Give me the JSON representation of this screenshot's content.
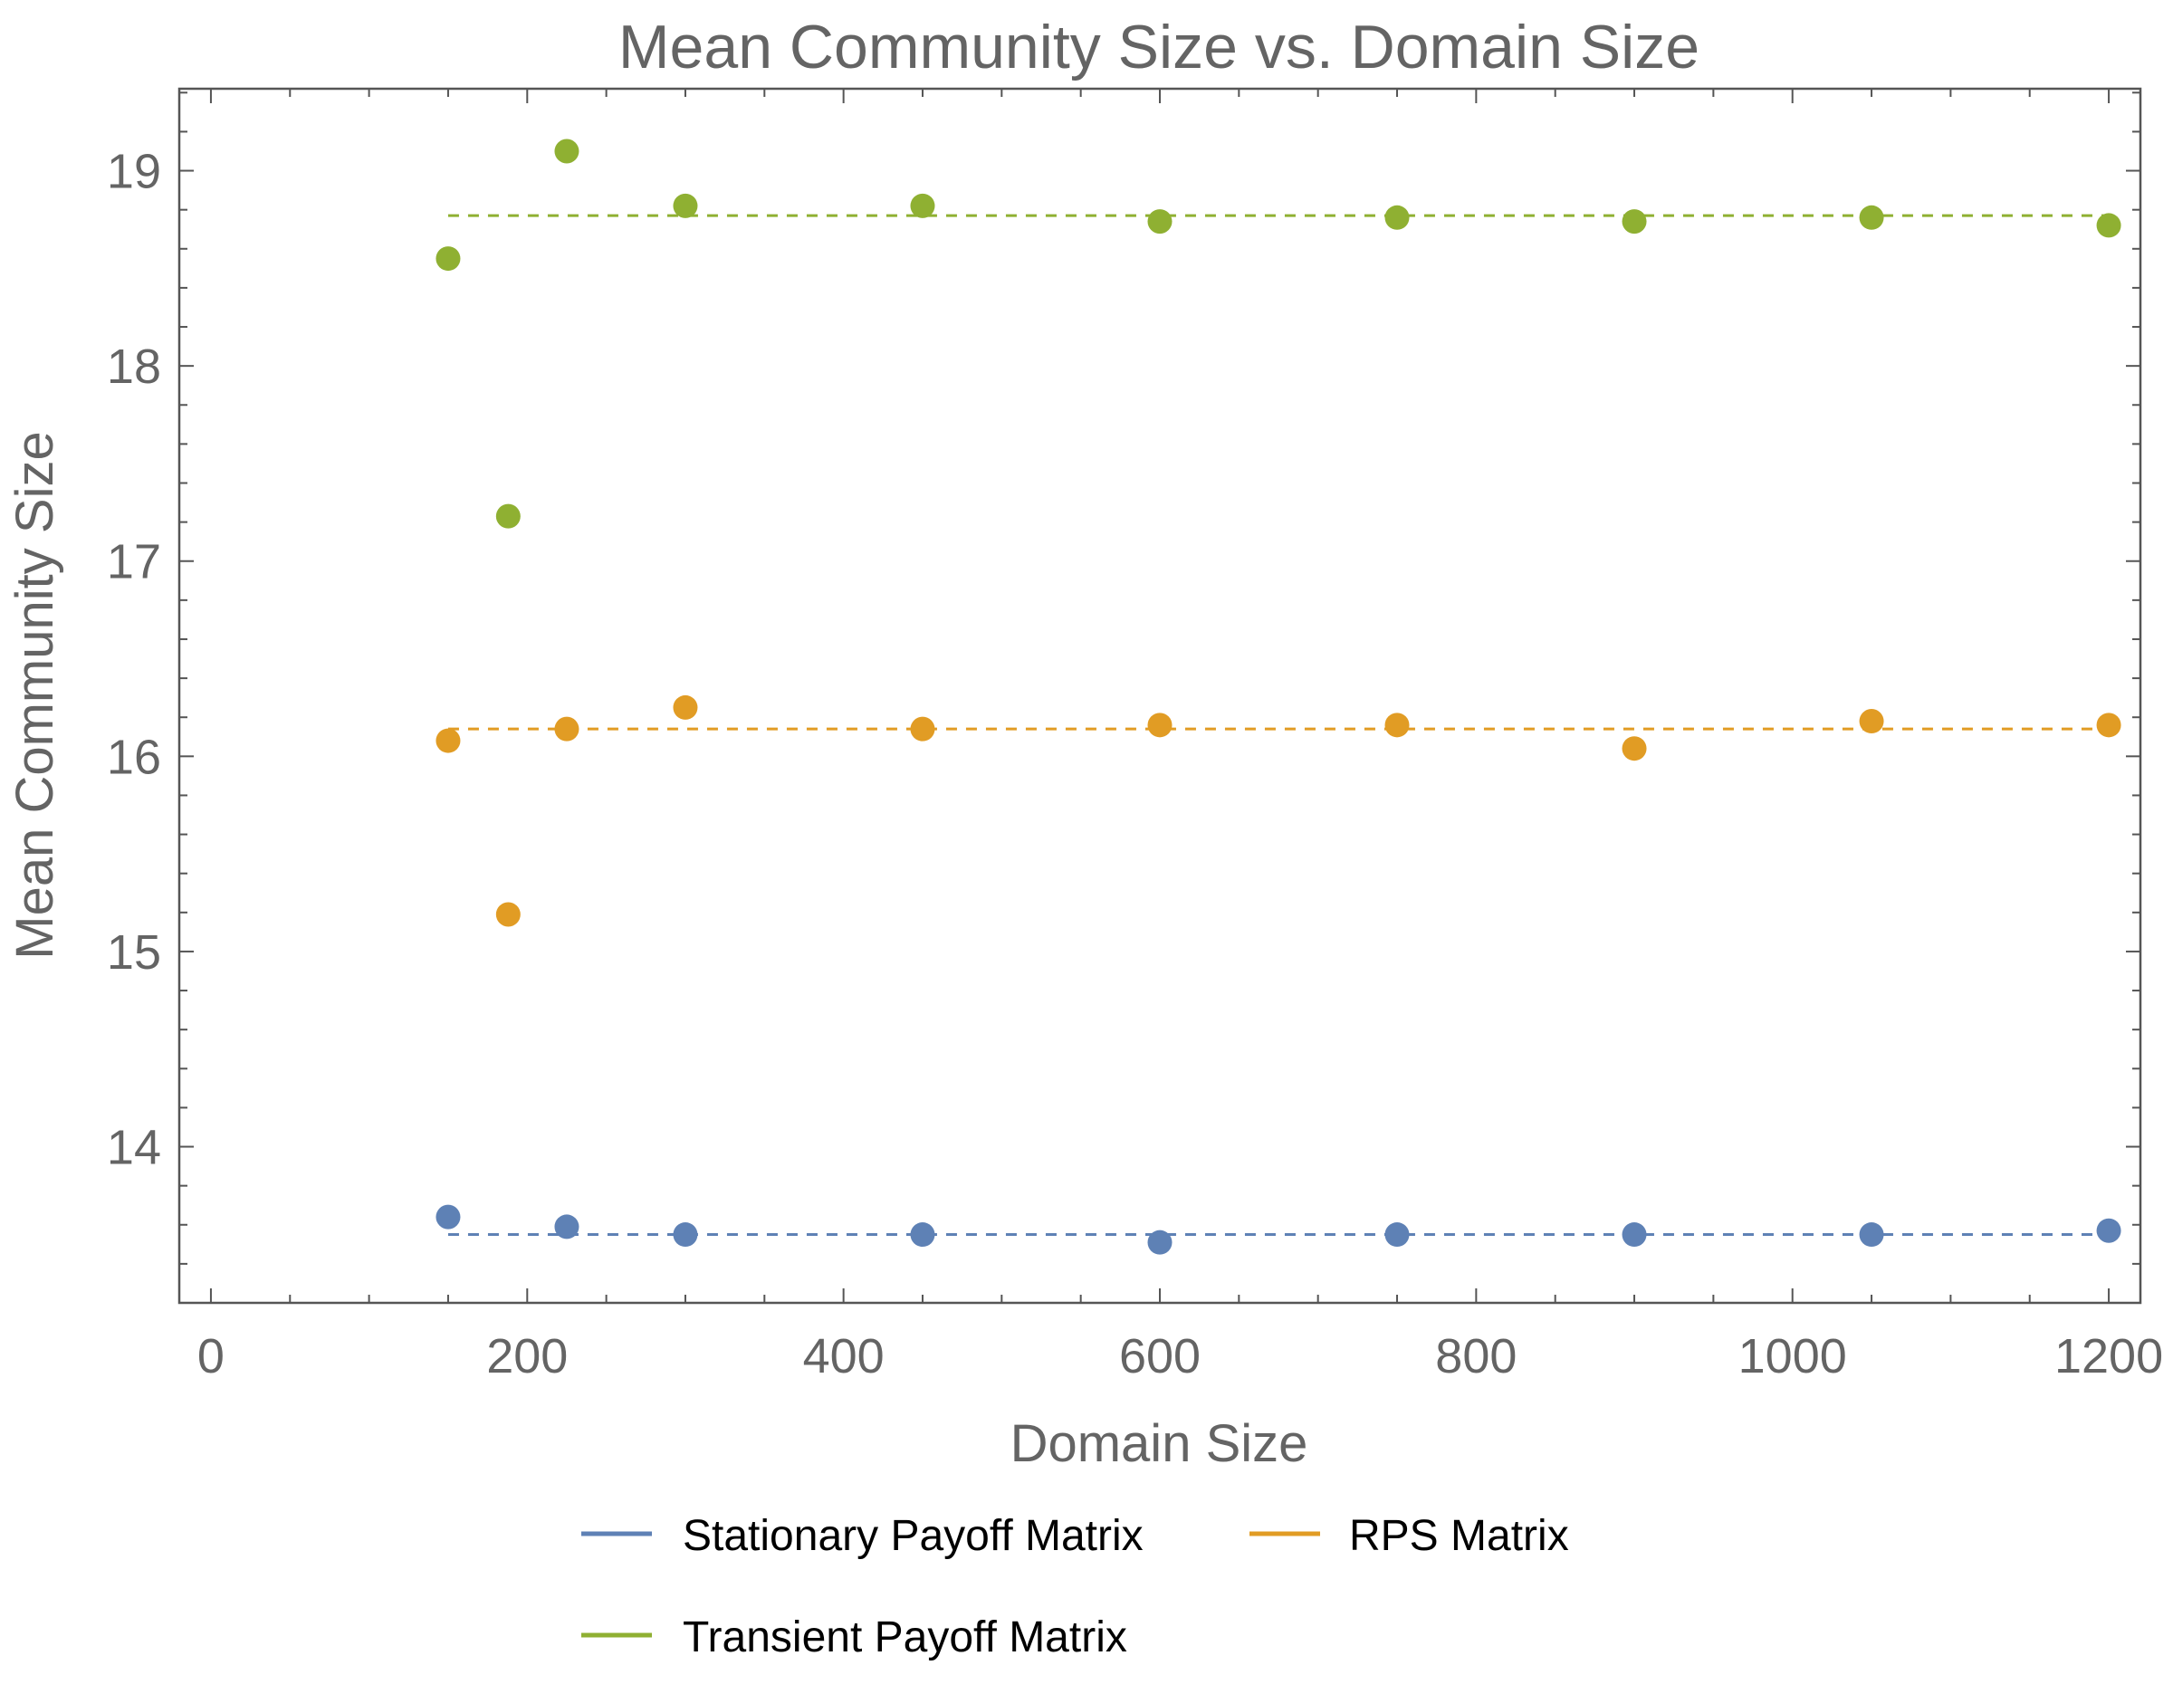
{
  "chart_data": {
    "type": "scatter",
    "title": "Mean Community Size vs. Domain Size",
    "xlabel": "Domain Size",
    "ylabel": "Mean Community Size",
    "xlim": [
      -20,
      1220
    ],
    "ylim": [
      13.2,
      19.42
    ],
    "x_ticks": [
      0,
      200,
      400,
      600,
      800,
      1000,
      1200
    ],
    "x_tick_labels": [
      "0",
      "200",
      "400",
      "600",
      "800",
      "1000",
      "1200"
    ],
    "y_ticks": [
      14,
      15,
      16,
      17,
      18,
      19
    ],
    "y_tick_labels": [
      "14",
      "15",
      "16",
      "17",
      "18",
      "19"
    ],
    "grid": false,
    "legend_position": "bottom",
    "series": [
      {
        "name": "Stationary Payoff Matrix",
        "color": "#5e81b5",
        "x": [
          150,
          188,
          225,
          300,
          450,
          600,
          750,
          900,
          1050,
          1200
        ],
        "y": [
          13.64,
          null,
          13.59,
          13.55,
          13.55,
          13.51,
          13.55,
          13.55,
          13.55,
          13.57
        ],
        "mean": 13.55
      },
      {
        "name": "RPS Matrix",
        "color": "#e19c24",
        "x": [
          150,
          188,
          225,
          300,
          450,
          600,
          750,
          900,
          1050,
          1200
        ],
        "y": [
          16.08,
          15.19,
          16.14,
          16.25,
          16.14,
          16.16,
          16.16,
          16.04,
          16.18,
          16.16
        ],
        "mean": 16.14
      },
      {
        "name": "Transient Payoff Matrix",
        "color": "#8fb032",
        "x": [
          150,
          188,
          225,
          300,
          450,
          600,
          750,
          900,
          1050,
          1200
        ],
        "y": [
          18.55,
          17.23,
          19.1,
          18.82,
          18.82,
          18.74,
          18.76,
          18.74,
          18.76,
          18.72
        ],
        "mean": 18.77
      }
    ]
  }
}
